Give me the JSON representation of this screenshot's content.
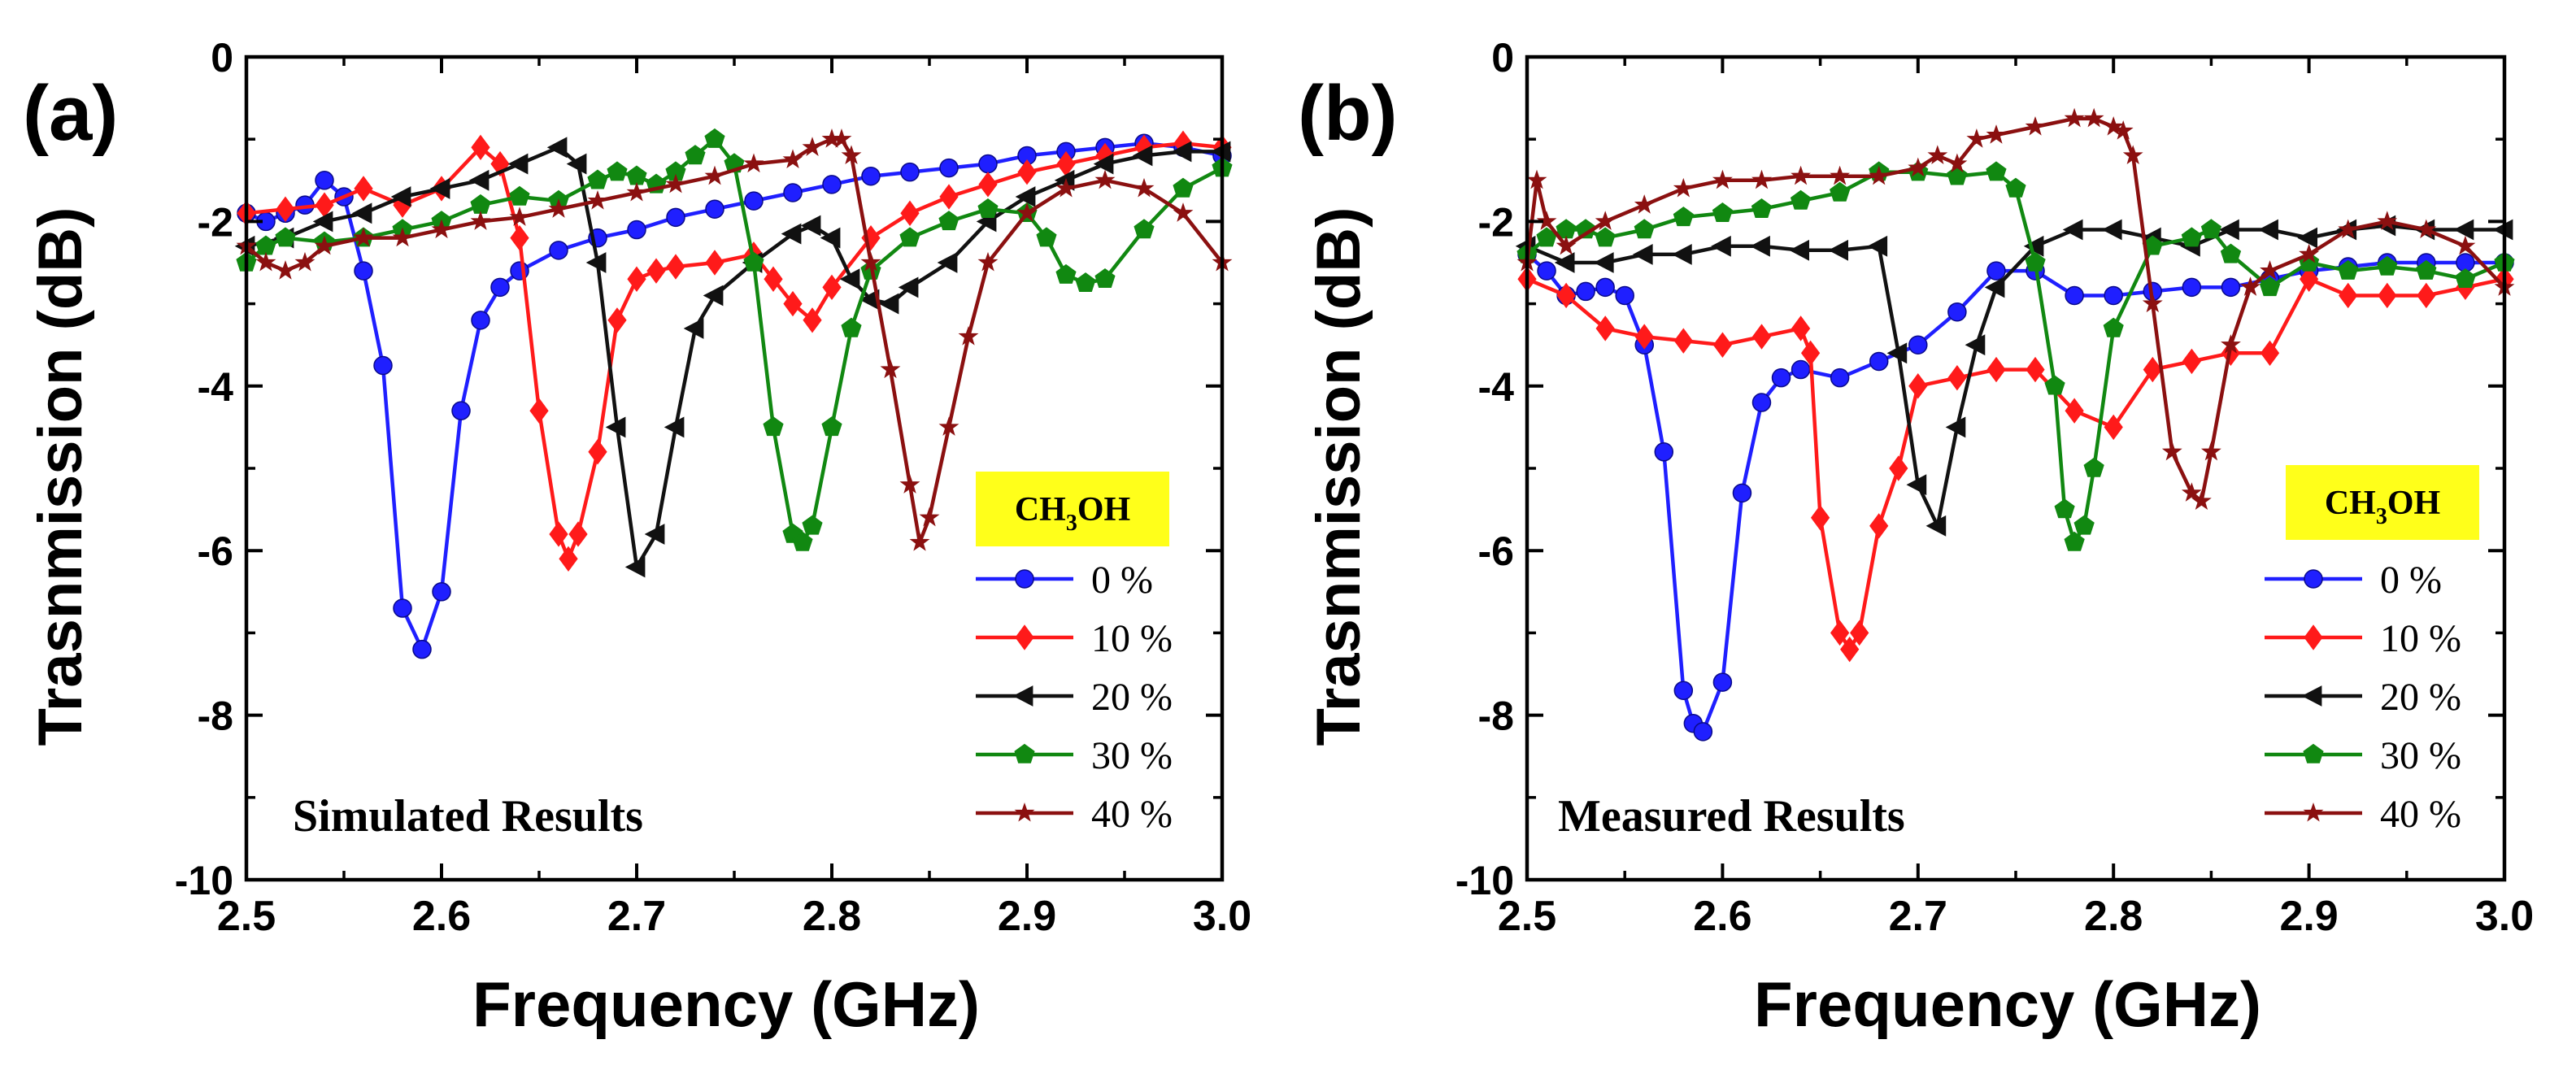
{
  "figure": {
    "legend_title_main": "CH",
    "legend_title_sub": "3",
    "legend_title_tail": "OH"
  },
  "chart_data": [
    {
      "type": "line",
      "panel_label": "(a)",
      "annotation": "Simulated Results",
      "xlabel": "Frequency (GHz)",
      "ylabel": "Trasnmission (dB)",
      "xlim": [
        2.5,
        3.0
      ],
      "ylim": [
        -10,
        0
      ],
      "xticks": [
        2.5,
        2.6,
        2.7,
        2.8,
        2.9,
        3.0
      ],
      "xtick_labels": [
        "2.5",
        "2.6",
        "2.7",
        "2.8",
        "2.9",
        "3.0"
      ],
      "yticks": [
        0,
        -2,
        -4,
        -6,
        -8,
        -10
      ],
      "ytick_labels": [
        "0",
        "-2",
        "-4",
        "-6",
        "-8",
        "-10"
      ],
      "legend_position": "lower-right",
      "series": [
        {
          "name": "0 %",
          "color": "#1f1fff",
          "marker": "circle",
          "x": [
            2.5,
            2.51,
            2.52,
            2.53,
            2.54,
            2.55,
            2.56,
            2.57,
            2.58,
            2.59,
            2.6,
            2.61,
            2.62,
            2.63,
            2.64,
            2.66,
            2.68,
            2.7,
            2.72,
            2.74,
            2.76,
            2.78,
            2.8,
            2.82,
            2.84,
            2.86,
            2.88,
            2.9,
            2.92,
            2.94,
            2.96,
            2.98,
            3.0
          ],
          "y": [
            -1.9,
            -2.0,
            -1.9,
            -1.8,
            -1.5,
            -1.7,
            -2.6,
            -3.75,
            -6.7,
            -7.2,
            -6.5,
            -4.3,
            -3.2,
            -2.8,
            -2.6,
            -2.35,
            -2.2,
            -2.1,
            -1.95,
            -1.85,
            -1.75,
            -1.65,
            -1.55,
            -1.45,
            -1.4,
            -1.35,
            -1.3,
            -1.2,
            -1.15,
            -1.1,
            -1.05,
            -1.1,
            -1.2
          ]
        },
        {
          "name": "10 %",
          "color": "#ff1a1a",
          "marker": "diamond",
          "x": [
            2.5,
            2.52,
            2.54,
            2.56,
            2.58,
            2.6,
            2.62,
            2.63,
            2.64,
            2.65,
            2.66,
            2.665,
            2.67,
            2.68,
            2.69,
            2.7,
            2.71,
            2.72,
            2.74,
            2.76,
            2.77,
            2.78,
            2.79,
            2.8,
            2.82,
            2.84,
            2.86,
            2.88,
            2.9,
            2.92,
            2.94,
            2.96,
            2.98,
            3.0
          ],
          "y": [
            -1.9,
            -1.85,
            -1.8,
            -1.6,
            -1.8,
            -1.6,
            -1.1,
            -1.3,
            -2.2,
            -4.3,
            -5.8,
            -6.1,
            -5.8,
            -4.8,
            -3.2,
            -2.7,
            -2.6,
            -2.55,
            -2.5,
            -2.4,
            -2.7,
            -3.0,
            -3.2,
            -2.8,
            -2.2,
            -1.9,
            -1.7,
            -1.55,
            -1.4,
            -1.3,
            -1.2,
            -1.1,
            -1.05,
            -1.1
          ]
        },
        {
          "name": "20 %",
          "color": "#111111",
          "marker": "triangle-left",
          "x": [
            2.5,
            2.52,
            2.54,
            2.56,
            2.58,
            2.6,
            2.62,
            2.64,
            2.66,
            2.67,
            2.68,
            2.69,
            2.7,
            2.71,
            2.72,
            2.73,
            2.74,
            2.76,
            2.78,
            2.79,
            2.8,
            2.81,
            2.82,
            2.83,
            2.84,
            2.86,
            2.88,
            2.9,
            2.92,
            2.94,
            2.96,
            2.98,
            3.0
          ],
          "y": [
            -2.3,
            -2.2,
            -2.0,
            -1.9,
            -1.7,
            -1.6,
            -1.5,
            -1.3,
            -1.1,
            -1.3,
            -2.5,
            -4.5,
            -6.2,
            -5.8,
            -4.5,
            -3.3,
            -2.9,
            -2.5,
            -2.15,
            -2.05,
            -2.2,
            -2.7,
            -2.95,
            -3.0,
            -2.8,
            -2.5,
            -2.0,
            -1.7,
            -1.5,
            -1.3,
            -1.2,
            -1.15,
            -1.15
          ]
        },
        {
          "name": "30 %",
          "color": "#118811",
          "marker": "pentagon",
          "x": [
            2.5,
            2.51,
            2.52,
            2.54,
            2.56,
            2.58,
            2.6,
            2.62,
            2.64,
            2.66,
            2.68,
            2.69,
            2.7,
            2.71,
            2.72,
            2.73,
            2.74,
            2.75,
            2.76,
            2.77,
            2.78,
            2.785,
            2.79,
            2.8,
            2.81,
            2.82,
            2.84,
            2.86,
            2.88,
            2.9,
            2.91,
            2.92,
            2.93,
            2.94,
            2.96,
            2.98,
            3.0
          ],
          "y": [
            -2.5,
            -2.3,
            -2.2,
            -2.25,
            -2.2,
            -2.1,
            -2.0,
            -1.8,
            -1.7,
            -1.75,
            -1.5,
            -1.4,
            -1.45,
            -1.55,
            -1.4,
            -1.2,
            -1.0,
            -1.3,
            -2.5,
            -4.5,
            -5.8,
            -5.9,
            -5.7,
            -4.5,
            -3.3,
            -2.6,
            -2.2,
            -2.0,
            -1.85,
            -1.9,
            -2.2,
            -2.65,
            -2.75,
            -2.7,
            -2.1,
            -1.6,
            -1.35
          ]
        },
        {
          "name": "40 %",
          "color": "#8b1010",
          "marker": "star",
          "x": [
            2.5,
            2.51,
            2.52,
            2.53,
            2.54,
            2.56,
            2.58,
            2.6,
            2.62,
            2.64,
            2.66,
            2.68,
            2.7,
            2.72,
            2.74,
            2.76,
            2.78,
            2.79,
            2.8,
            2.805,
            2.81,
            2.82,
            2.83,
            2.84,
            2.845,
            2.85,
            2.86,
            2.87,
            2.88,
            2.9,
            2.92,
            2.94,
            2.96,
            2.98,
            3.0
          ],
          "y": [
            -2.3,
            -2.5,
            -2.6,
            -2.5,
            -2.3,
            -2.2,
            -2.2,
            -2.1,
            -2.0,
            -1.95,
            -1.85,
            -1.75,
            -1.65,
            -1.55,
            -1.45,
            -1.3,
            -1.25,
            -1.1,
            -1.0,
            -1.0,
            -1.2,
            -2.5,
            -3.8,
            -5.2,
            -5.9,
            -5.6,
            -4.5,
            -3.4,
            -2.5,
            -1.9,
            -1.6,
            -1.5,
            -1.6,
            -1.9,
            -2.5
          ]
        }
      ]
    },
    {
      "type": "line",
      "panel_label": "(b)",
      "annotation": "Measured Results",
      "xlabel": "Frequency (GHz)",
      "ylabel": "Trasnmission (dB)",
      "xlim": [
        2.5,
        3.0
      ],
      "ylim": [
        -10,
        0
      ],
      "xticks": [
        2.5,
        2.6,
        2.7,
        2.8,
        2.9,
        3.0
      ],
      "xtick_labels": [
        "2.5",
        "2.6",
        "2.7",
        "2.8",
        "2.9",
        "3.0"
      ],
      "yticks": [
        0,
        -2,
        -4,
        -6,
        -8,
        -10
      ],
      "ytick_labels": [
        "0",
        "-2",
        "-4",
        "-6",
        "-8",
        "-10"
      ],
      "legend_position": "lower-right",
      "series": [
        {
          "name": "0 %",
          "color": "#1f1fff",
          "marker": "circle",
          "x": [
            2.5,
            2.51,
            2.52,
            2.53,
            2.54,
            2.55,
            2.56,
            2.57,
            2.58,
            2.585,
            2.59,
            2.6,
            2.61,
            2.62,
            2.63,
            2.64,
            2.66,
            2.68,
            2.7,
            2.72,
            2.74,
            2.76,
            2.78,
            2.8,
            2.82,
            2.84,
            2.86,
            2.88,
            2.9,
            2.92,
            2.94,
            2.96,
            2.98,
            3.0
          ],
          "y": [
            -2.4,
            -2.6,
            -2.9,
            -2.85,
            -2.8,
            -2.9,
            -3.5,
            -4.8,
            -7.7,
            -8.1,
            -8.2,
            -7.6,
            -5.3,
            -4.2,
            -3.9,
            -3.8,
            -3.9,
            -3.7,
            -3.5,
            -3.1,
            -2.6,
            -2.6,
            -2.9,
            -2.9,
            -2.85,
            -2.8,
            -2.8,
            -2.7,
            -2.6,
            -2.55,
            -2.5,
            -2.5,
            -2.5,
            -2.5
          ]
        },
        {
          "name": "10 %",
          "color": "#ff1a1a",
          "marker": "diamond",
          "x": [
            2.5,
            2.52,
            2.54,
            2.56,
            2.58,
            2.6,
            2.62,
            2.64,
            2.645,
            2.65,
            2.66,
            2.665,
            2.67,
            2.68,
            2.69,
            2.7,
            2.72,
            2.74,
            2.76,
            2.78,
            2.8,
            2.82,
            2.84,
            2.86,
            2.88,
            2.9,
            2.92,
            2.94,
            2.96,
            2.98,
            3.0
          ],
          "y": [
            -2.7,
            -2.9,
            -3.3,
            -3.4,
            -3.45,
            -3.5,
            -3.4,
            -3.3,
            -3.6,
            -5.6,
            -7.0,
            -7.2,
            -7.0,
            -5.7,
            -5.0,
            -4.0,
            -3.9,
            -3.8,
            -3.8,
            -4.3,
            -4.5,
            -3.8,
            -3.7,
            -3.6,
            -3.6,
            -2.7,
            -2.9,
            -2.9,
            -2.9,
            -2.8,
            -2.7
          ]
        },
        {
          "name": "20 %",
          "color": "#111111",
          "marker": "triangle-left",
          "x": [
            2.5,
            2.52,
            2.54,
            2.56,
            2.58,
            2.6,
            2.62,
            2.64,
            2.66,
            2.68,
            2.69,
            2.7,
            2.71,
            2.72,
            2.73,
            2.74,
            2.76,
            2.78,
            2.8,
            2.82,
            2.84,
            2.86,
            2.88,
            2.9,
            2.92,
            2.94,
            2.96,
            2.98,
            3.0
          ],
          "y": [
            -2.3,
            -2.5,
            -2.5,
            -2.4,
            -2.4,
            -2.3,
            -2.3,
            -2.35,
            -2.35,
            -2.3,
            -3.6,
            -5.2,
            -5.7,
            -4.5,
            -3.5,
            -2.8,
            -2.3,
            -2.1,
            -2.1,
            -2.2,
            -2.3,
            -2.1,
            -2.1,
            -2.2,
            -2.1,
            -2.05,
            -2.1,
            -2.1,
            -2.1
          ]
        },
        {
          "name": "30 %",
          "color": "#118811",
          "marker": "pentagon",
          "x": [
            2.5,
            2.51,
            2.52,
            2.53,
            2.54,
            2.56,
            2.58,
            2.6,
            2.62,
            2.64,
            2.66,
            2.68,
            2.7,
            2.72,
            2.74,
            2.75,
            2.76,
            2.77,
            2.775,
            2.78,
            2.785,
            2.79,
            2.8,
            2.82,
            2.84,
            2.85,
            2.86,
            2.88,
            2.9,
            2.92,
            2.94,
            2.96,
            2.98,
            3.0
          ],
          "y": [
            -2.4,
            -2.2,
            -2.1,
            -2.1,
            -2.2,
            -2.1,
            -1.95,
            -1.9,
            -1.85,
            -1.75,
            -1.65,
            -1.4,
            -1.4,
            -1.45,
            -1.4,
            -1.6,
            -2.5,
            -4.0,
            -5.5,
            -5.9,
            -5.7,
            -5.0,
            -3.3,
            -2.3,
            -2.2,
            -2.1,
            -2.4,
            -2.8,
            -2.5,
            -2.6,
            -2.55,
            -2.6,
            -2.7,
            -2.5
          ]
        },
        {
          "name": "40 %",
          "color": "#8b1010",
          "marker": "star",
          "x": [
            2.5,
            2.505,
            2.51,
            2.52,
            2.54,
            2.56,
            2.58,
            2.6,
            2.62,
            2.64,
            2.66,
            2.68,
            2.7,
            2.71,
            2.72,
            2.73,
            2.74,
            2.76,
            2.78,
            2.79,
            2.8,
            2.805,
            2.81,
            2.82,
            2.83,
            2.84,
            2.845,
            2.85,
            2.86,
            2.87,
            2.88,
            2.9,
            2.92,
            2.94,
            2.96,
            2.98,
            3.0
          ],
          "y": [
            -2.5,
            -1.5,
            -2.0,
            -2.3,
            -2.0,
            -1.8,
            -1.6,
            -1.5,
            -1.5,
            -1.45,
            -1.45,
            -1.45,
            -1.35,
            -1.2,
            -1.3,
            -1.0,
            -0.95,
            -0.85,
            -0.75,
            -0.75,
            -0.85,
            -0.9,
            -1.2,
            -3.0,
            -4.8,
            -5.3,
            -5.4,
            -4.8,
            -3.5,
            -2.8,
            -2.6,
            -2.4,
            -2.1,
            -2.0,
            -2.1,
            -2.3,
            -2.8
          ]
        }
      ]
    }
  ]
}
